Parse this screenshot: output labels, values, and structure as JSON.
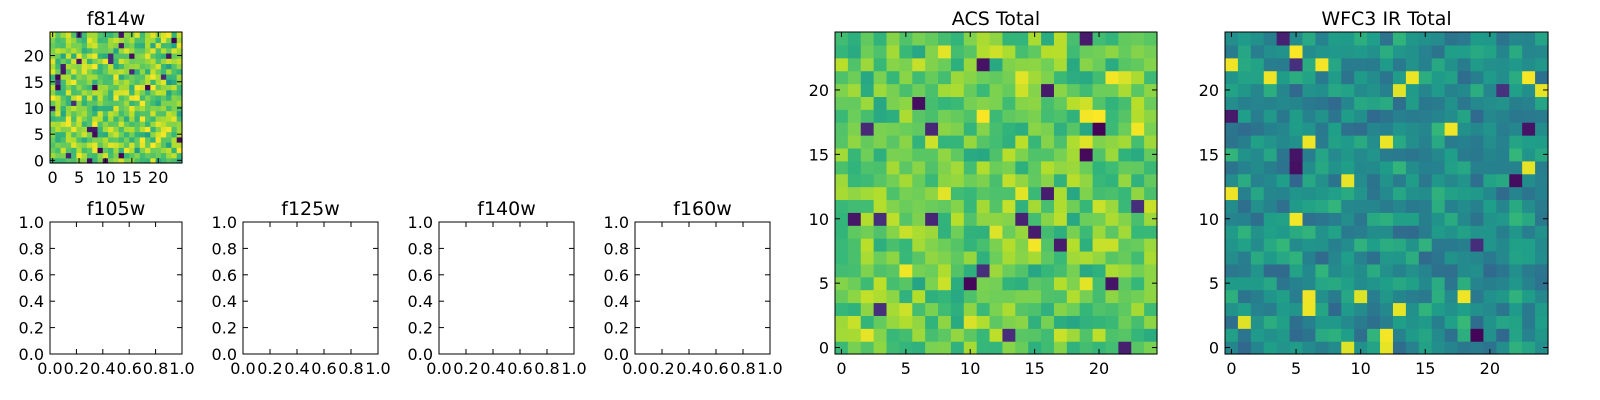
{
  "figure": {
    "panels": [
      {
        "id": "f814w",
        "title": "f814w",
        "type": "heatmap",
        "size": 25,
        "extent": [
          -0.5,
          24.5
        ],
        "xticks": [
          0,
          5,
          10,
          15,
          20
        ],
        "yticks": [
          0,
          5,
          10,
          15,
          20
        ],
        "mean": 0.78,
        "spread": 0.16,
        "dark_frac": 0.05,
        "seed": 11
      },
      {
        "id": "f105w",
        "title": "f105w",
        "type": "empty",
        "xlim": [
          0,
          1
        ],
        "ylim": [
          0,
          1
        ],
        "xticks": [
          "0.0",
          "0.2",
          "0.4",
          "0.6",
          "0.8",
          "1.0"
        ],
        "yticks": [
          "0.0",
          "0.2",
          "0.4",
          "0.6",
          "0.8",
          "1.0"
        ]
      },
      {
        "id": "f125w",
        "title": "f125w",
        "type": "empty",
        "xlim": [
          0,
          1
        ],
        "ylim": [
          0,
          1
        ],
        "xticks": [
          "0.0",
          "0.2",
          "0.4",
          "0.6",
          "0.8",
          "1.0"
        ],
        "yticks": [
          "0.0",
          "0.2",
          "0.4",
          "0.6",
          "0.8",
          "1.0"
        ]
      },
      {
        "id": "f140w",
        "title": "f140w",
        "type": "empty",
        "xlim": [
          0,
          1
        ],
        "ylim": [
          0,
          1
        ],
        "xticks": [
          "0.0",
          "0.2",
          "0.4",
          "0.6",
          "0.8",
          "1.0"
        ],
        "yticks": [
          "0.0",
          "0.2",
          "0.4",
          "0.6",
          "0.8",
          "1.0"
        ]
      },
      {
        "id": "f160w",
        "title": "f160w",
        "type": "empty",
        "xlim": [
          0,
          1
        ],
        "ylim": [
          0,
          1
        ],
        "xticks": [
          "0.0",
          "0.2",
          "0.4",
          "0.6",
          "0.8",
          "1.0"
        ],
        "yticks": [
          "0.0",
          "0.2",
          "0.4",
          "0.6",
          "0.8",
          "1.0"
        ]
      },
      {
        "id": "acs-total",
        "title": "ACS Total",
        "type": "heatmap",
        "size": 25,
        "extent": [
          -0.5,
          24.5
        ],
        "xticks": [
          0,
          5,
          10,
          15,
          20
        ],
        "yticks": [
          0,
          5,
          10,
          15,
          20
        ],
        "mean": 0.76,
        "spread": 0.13,
        "dark_frac": 0.02,
        "seed": 23
      },
      {
        "id": "wfc3-ir-total",
        "title": "WFC3 IR Total",
        "type": "heatmap",
        "size": 25,
        "extent": [
          -0.5,
          24.5
        ],
        "xticks": [
          0,
          5,
          10,
          15,
          20
        ],
        "yticks": [
          0,
          5,
          10,
          15,
          20
        ],
        "mean": 0.5,
        "spread": 0.12,
        "dark_frac": 0.03,
        "seed": 37
      }
    ]
  },
  "chart_data": [
    {
      "type": "heatmap",
      "title": "f814w",
      "xlabel": "",
      "ylabel": "",
      "xlim": [
        -0.5,
        24.5
      ],
      "ylim": [
        -0.5,
        24.5
      ],
      "colormap": "viridis"
    },
    {
      "type": "scatter",
      "title": "f105w",
      "x": [],
      "y": [],
      "xlim": [
        0,
        1
      ],
      "ylim": [
        0,
        1
      ]
    },
    {
      "type": "scatter",
      "title": "f125w",
      "x": [],
      "y": [],
      "xlim": [
        0,
        1
      ],
      "ylim": [
        0,
        1
      ]
    },
    {
      "type": "scatter",
      "title": "f140w",
      "x": [],
      "y": [],
      "xlim": [
        0,
        1
      ],
      "ylim": [
        0,
        1
      ]
    },
    {
      "type": "scatter",
      "title": "f160w",
      "x": [],
      "y": [],
      "xlim": [
        0,
        1
      ],
      "ylim": [
        0,
        1
      ]
    },
    {
      "type": "heatmap",
      "title": "ACS Total",
      "xlabel": "",
      "ylabel": "",
      "xlim": [
        -0.5,
        24.5
      ],
      "ylim": [
        -0.5,
        24.5
      ],
      "colormap": "viridis"
    },
    {
      "type": "heatmap",
      "title": "WFC3 IR Total",
      "xlabel": "",
      "ylabel": "",
      "xlim": [
        -0.5,
        24.5
      ],
      "ylim": [
        -0.5,
        24.5
      ],
      "colormap": "viridis"
    }
  ],
  "colormap": [
    "#440154",
    "#482878",
    "#3e4989",
    "#31688e",
    "#26828e",
    "#1f9e89",
    "#35b779",
    "#6ece58",
    "#b5de2b",
    "#fde725"
  ]
}
